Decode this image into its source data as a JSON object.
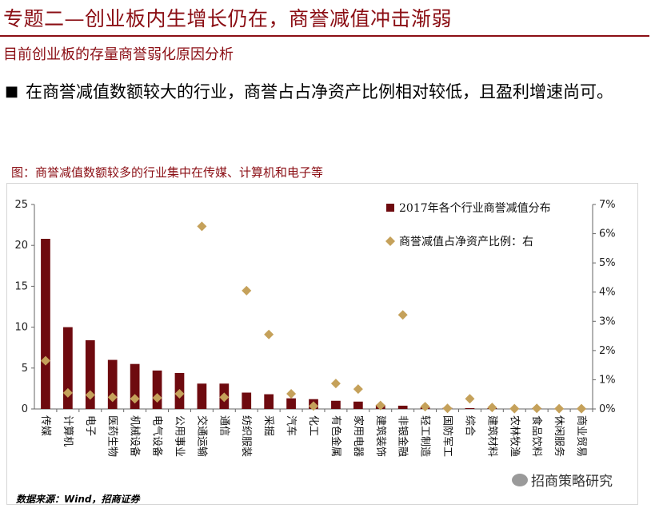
{
  "header": {
    "title": "专题二—创业板内生增长仍在，商誉减值冲击渐弱",
    "subtitle": "目前创业板的存量商誉弱化原因分析"
  },
  "bullet": {
    "mark": "■",
    "text": "在商誉减值数额较大的行业，商誉占占净资产比例相对较低，且盈利增速尚可。"
  },
  "figure": {
    "caption": "图：商誉减值数额较多的行业集中在传媒、计算机和电子等",
    "source": "数据来源：Wind，招商证券"
  },
  "watermark": {
    "text": "招商策略研究"
  },
  "chart_data": {
    "type": "bar",
    "categories": [
      "传媒",
      "计算机",
      "电子",
      "医药生物",
      "机械设备",
      "电气设备",
      "公用事业",
      "交通运输",
      "通信",
      "纺织服装",
      "采掘",
      "汽车",
      "化工",
      "有色金属",
      "家用电器",
      "建筑装饰",
      "非银金融",
      "轻工制造",
      "国防军工",
      "综合",
      "建筑材料",
      "农林牧渔",
      "食品饮料",
      "休闲服务",
      "商业贸易"
    ],
    "series": [
      {
        "name": "2017年各个行业商誉减值分布",
        "kind": "bar",
        "axis": "left",
        "color": "#6e0a0f",
        "values": [
          20.8,
          10.0,
          8.4,
          6.0,
          5.5,
          4.7,
          4.4,
          3.1,
          3.1,
          2.0,
          1.8,
          1.3,
          1.2,
          1.0,
          0.9,
          0.5,
          0.4,
          0.2,
          0.15,
          0.1,
          0.1,
          0.05,
          0.05,
          0.03,
          0.02
        ]
      },
      {
        "name": "商誉减值占净资产比例：右",
        "kind": "scatter",
        "axis": "right",
        "color": "#c5a15a",
        "values": [
          1.65,
          0.55,
          0.48,
          0.4,
          0.35,
          0.38,
          0.52,
          6.25,
          0.4,
          4.05,
          2.55,
          0.52,
          0.1,
          0.87,
          0.68,
          0.12,
          3.22,
          0.08,
          0.02,
          0.35,
          0.05,
          0.01,
          0.02,
          0.01,
          0.01
        ]
      }
    ],
    "y_left": {
      "min": 0,
      "max": 25,
      "ticks": [
        0,
        5,
        10,
        15,
        20,
        25
      ]
    },
    "y_right": {
      "min": 0,
      "max": 7,
      "ticks": [
        "0%",
        "1%",
        "2%",
        "3%",
        "4%",
        "5%",
        "6%",
        "7%"
      ]
    },
    "legend_position": "top-right",
    "grid": false
  }
}
